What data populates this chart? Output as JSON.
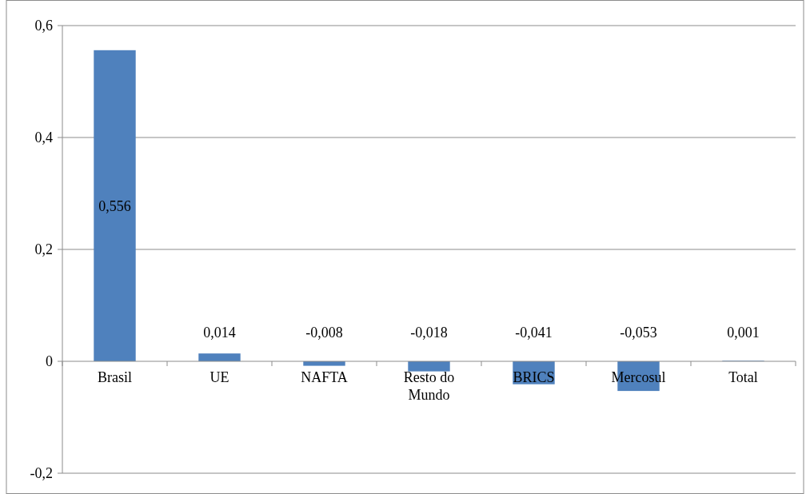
{
  "chart_data": {
    "type": "bar",
    "categories": [
      "Brasil",
      "UE",
      "NAFTA",
      "Resto do Mundo",
      "BRICS",
      "Mercosul",
      "Total"
    ],
    "values": [
      0.556,
      0.014,
      -0.008,
      -0.018,
      -0.041,
      -0.053,
      0.001
    ],
    "color": "#4f81bd",
    "ylim": [
      -0.2,
      0.6
    ],
    "yticks": [
      {
        "value": -0.2,
        "label": "-0,2"
      },
      {
        "value": 0,
        "label": "0"
      },
      {
        "value": 0.2,
        "label": "0,2"
      },
      {
        "value": 0.4,
        "label": "0,4"
      },
      {
        "value": 0.6,
        "label": "0,6"
      }
    ],
    "value_labels": [
      "0,556",
      "0,014",
      "-0,008",
      "-0,018",
      "-0,041",
      "-0,053",
      "0,001"
    ],
    "grid": "y"
  }
}
